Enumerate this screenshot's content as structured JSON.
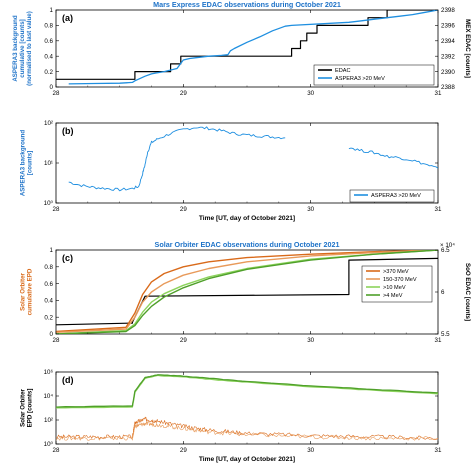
{
  "chart_data": [
    {
      "panel": "(a)",
      "type": "line",
      "title": "Mars Express EDAC observations during October 2021",
      "ylabel": "ASPERA3 background cumulative [counts] (normalised to last value)",
      "ylabel_right": "MEX EDAC [counts]",
      "xlim": [
        28,
        31
      ],
      "ylim": [
        0,
        1
      ],
      "ylim_right": [
        2388,
        2398
      ],
      "x_ticks": [
        "28",
        "29",
        "30",
        "31"
      ],
      "y_ticks": [
        "0",
        "0.2",
        "0.4",
        "0.6",
        "0.8",
        "1"
      ],
      "y_ticks_right": [
        "2388",
        "2390",
        "2392",
        "2394",
        "2396",
        "2398"
      ],
      "legend": "bottom-right",
      "series": [
        {
          "name": "EDAC",
          "color": "#000000",
          "axis": "right",
          "x": [
            28.0,
            28.62,
            28.62,
            28.9,
            28.9,
            28.98,
            28.98,
            29.85,
            29.85,
            29.92,
            29.92,
            29.97,
            29.97,
            30.05,
            30.05,
            30.45,
            30.45,
            30.6,
            30.6,
            31.0
          ],
          "y": [
            2389,
            2389,
            2390,
            2390,
            2391,
            2391,
            2392,
            2392,
            2393,
            2393,
            2394,
            2394,
            2395,
            2395,
            2396,
            2396,
            2397,
            2397,
            2398,
            2398
          ]
        },
        {
          "name": "ASPERA3 >20 MeV",
          "color": "#1f8fe0",
          "axis": "left",
          "x": [
            28.1,
            28.3,
            28.5,
            28.6,
            28.62,
            28.7,
            28.75,
            28.78,
            28.85,
            28.95,
            29.0,
            29.05,
            29.1,
            29.2,
            29.3,
            29.35,
            29.37,
            29.4,
            29.5,
            29.6,
            29.7,
            29.8,
            29.85,
            30.3,
            30.4,
            30.5,
            30.6,
            30.7,
            30.8,
            30.9,
            31.0
          ],
          "y": [
            0.04,
            0.045,
            0.05,
            0.06,
            0.08,
            0.14,
            0.17,
            0.18,
            0.2,
            0.24,
            0.35,
            0.37,
            0.38,
            0.4,
            0.41,
            0.42,
            0.47,
            0.5,
            0.58,
            0.65,
            0.73,
            0.79,
            0.8,
            0.84,
            0.86,
            0.88,
            0.9,
            0.92,
            0.94,
            0.97,
            1.0
          ]
        }
      ]
    },
    {
      "panel": "(b)",
      "type": "line",
      "ylabel": "ASPERA3 background [counts]",
      "xlabel": "Time [UT, day of October 2021]",
      "xlim": [
        28,
        31
      ],
      "yscale": "log",
      "ylim": [
        1,
        200
      ],
      "x_ticks": [
        "28",
        "29",
        "30",
        "31"
      ],
      "y_ticks": [
        "10⁰",
        "10¹",
        "10²"
      ],
      "legend": "bottom-right",
      "series": [
        {
          "name": "ASPERA3 >20 MeV",
          "color": "#1f8fe0",
          "x": [
            28.1,
            28.2,
            28.3,
            28.4,
            28.5,
            28.6,
            28.65,
            28.68,
            28.7,
            28.72,
            28.75,
            28.8,
            28.9,
            29.0,
            29.1,
            29.2,
            29.3,
            29.4,
            29.5,
            29.6,
            29.7,
            29.8
          ],
          "y": [
            4,
            3.2,
            2.8,
            2.6,
            2.4,
            2.6,
            3.0,
            7,
            13,
            30,
            55,
            70,
            100,
            130,
            150,
            140,
            120,
            100,
            90,
            85,
            80,
            75
          ]
        },
        {
          "name": "",
          "color": "#1f8fe0",
          "x": [
            30.3,
            30.4,
            30.5,
            30.6,
            30.7,
            30.8,
            30.9,
            31.0
          ],
          "y": [
            40,
            32,
            28,
            22,
            20,
            17,
            13,
            10
          ]
        }
      ]
    },
    {
      "panel": "(c)",
      "type": "line",
      "title": "Solar Orbiter EDAC observations during October 2021",
      "ylabel": "Solar Orbiter cumulative EPD",
      "ylabel_right": "SoO EDAC [counts]",
      "right_axis_exponent": "× 10⁴",
      "xlim": [
        28,
        31
      ],
      "ylim": [
        0,
        1
      ],
      "ylim_right": [
        5.5,
        6.5
      ],
      "x_ticks": [
        "28",
        "29",
        "30",
        "31"
      ],
      "y_ticks": [
        "0",
        "0.2",
        "0.4",
        "0.6",
        "0.8",
        "1"
      ],
      "y_ticks_right": [
        "5.5",
        "6",
        "6.5"
      ],
      "legend": "right",
      "series": [
        {
          "name": "EDAC",
          "color": "#000000",
          "axis": "right",
          "x": [
            28.0,
            28.6,
            28.6,
            28.7,
            28.7,
            30.3,
            30.3,
            31.0
          ],
          "y": [
            5.61,
            5.63,
            5.64,
            5.95,
            5.95,
            5.97,
            6.38,
            6.4
          ]
        },
        {
          "name": ">370 MeV",
          "color": "#d96a1a",
          "axis": "left",
          "x": [
            28.0,
            28.55,
            28.62,
            28.68,
            28.75,
            28.85,
            29.0,
            29.2,
            29.5,
            30.0,
            30.5,
            31.0
          ],
          "y": [
            0.03,
            0.08,
            0.25,
            0.47,
            0.62,
            0.72,
            0.8,
            0.86,
            0.91,
            0.95,
            0.98,
            1.0
          ]
        },
        {
          "name": "150-370 MeV",
          "color": "#e89a5a",
          "axis": "left",
          "x": [
            28.0,
            28.55,
            28.62,
            28.68,
            28.75,
            28.85,
            29.0,
            29.2,
            29.5,
            30.0,
            30.5,
            31.0
          ],
          "y": [
            0.02,
            0.06,
            0.2,
            0.38,
            0.5,
            0.6,
            0.7,
            0.78,
            0.86,
            0.93,
            0.97,
            1.0
          ]
        },
        {
          "name": ">10 MeV",
          "color": "#8cd35c",
          "axis": "left",
          "x": [
            28.0,
            28.55,
            28.62,
            28.68,
            28.75,
            28.85,
            29.0,
            29.2,
            29.5,
            30.0,
            30.5,
            31.0
          ],
          "y": [
            0.0,
            0.04,
            0.12,
            0.26,
            0.38,
            0.48,
            0.58,
            0.68,
            0.78,
            0.89,
            0.95,
            1.0
          ]
        },
        {
          "name": ">4 MeV",
          "color": "#4fa02a",
          "axis": "left",
          "x": [
            28.0,
            28.55,
            28.62,
            28.68,
            28.75,
            28.85,
            29.0,
            29.2,
            29.5,
            30.0,
            30.5,
            31.0
          ],
          "y": [
            0.0,
            0.03,
            0.1,
            0.22,
            0.33,
            0.44,
            0.55,
            0.66,
            0.77,
            0.88,
            0.95,
            1.0
          ]
        }
      ]
    },
    {
      "panel": "(d)",
      "type": "line",
      "ylabel": "Solar Orbiter EPD [counts]",
      "xlabel": "Time [UT, day of October 2021]",
      "xlim": [
        28,
        31
      ],
      "yscale": "log",
      "ylim": [
        1,
        1000000
      ],
      "x_ticks": [
        "28",
        "29",
        "30",
        "31"
      ],
      "y_ticks": [
        "10⁰",
        "10²",
        "10⁴",
        "10⁶"
      ],
      "series": [
        {
          "name": ">370 MeV",
          "color": "#d96a1a",
          "x": [
            28.0,
            28.3,
            28.6,
            28.62,
            28.7,
            28.8,
            29.0,
            29.2,
            29.5,
            30.0,
            30.5,
            31.0
          ],
          "y": [
            4,
            4,
            4,
            60,
            120,
            80,
            30,
            15,
            8,
            5,
            4,
            3
          ]
        },
        {
          "name": "150-370 MeV",
          "color": "#e89a5a",
          "x": [
            28.0,
            28.3,
            28.6,
            28.62,
            28.7,
            28.8,
            29.0,
            29.2,
            29.5,
            30.0,
            30.5,
            31.0
          ],
          "y": [
            3,
            3,
            3,
            30,
            50,
            40,
            20,
            10,
            6,
            4,
            3,
            3
          ]
        },
        {
          "name": ">10 MeV",
          "color": "#8cd35c",
          "x": [
            28.0,
            28.6,
            28.62,
            28.7,
            28.8,
            29.0,
            29.2,
            29.5,
            30.0,
            30.5,
            31.0
          ],
          "y": [
            1000,
            1200,
            20000,
            300000,
            500000,
            400000,
            250000,
            140000,
            60000,
            30000,
            15000
          ]
        },
        {
          "name": ">4 MeV",
          "color": "#4fa02a",
          "x": [
            28.0,
            28.6,
            28.62,
            28.7,
            28.8,
            29.0,
            29.2,
            29.5,
            30.0,
            30.5,
            31.0
          ],
          "y": [
            1200,
            1500,
            25000,
            350000,
            600000,
            450000,
            300000,
            160000,
            70000,
            35000,
            18000
          ]
        }
      ]
    }
  ]
}
